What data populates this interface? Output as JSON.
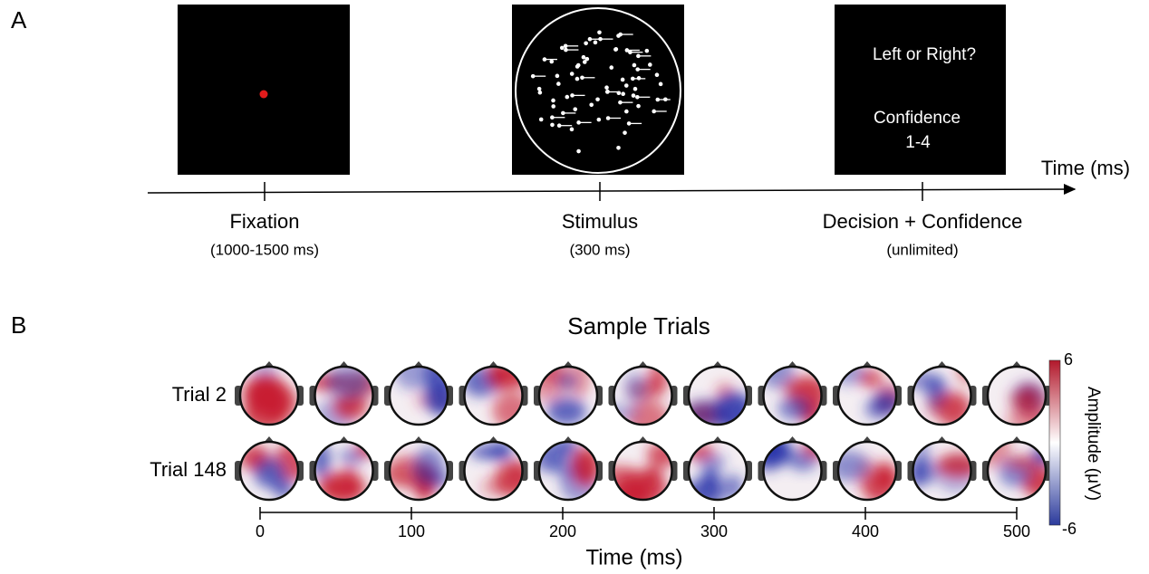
{
  "panel_a": {
    "label": "A",
    "axis_label": "Time (ms)",
    "decision_screen": {
      "question": "Left or Right?",
      "confidence": "Confidence",
      "scale": "1-4"
    },
    "phases": [
      {
        "name": "Fixation",
        "duration": "(1000-1500 ms)"
      },
      {
        "name": "Stimulus",
        "duration": "(300 ms)"
      },
      {
        "name": "Decision + Confidence",
        "duration": "(unlimited)"
      }
    ]
  },
  "panel_b": {
    "label": "B",
    "title": "Sample Trials",
    "rows": [
      "Trial 2",
      "Trial 148"
    ],
    "x_axis": {
      "label": "Time (ms)",
      "ticks": [
        0,
        100,
        200,
        300,
        400,
        500
      ]
    },
    "colorbar": {
      "label": "Amplitude (μV)",
      "max": 6,
      "min": -6
    }
  }
}
